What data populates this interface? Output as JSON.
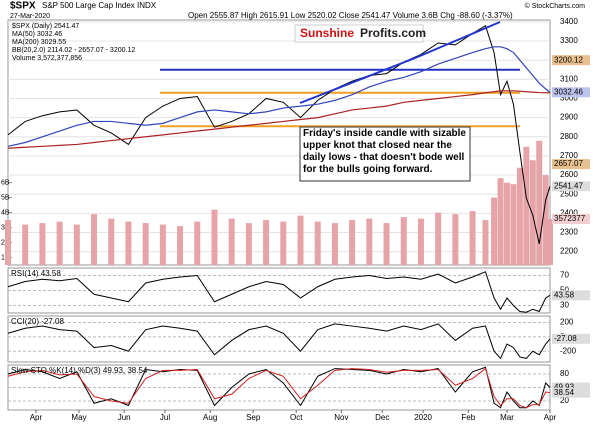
{
  "header": {
    "symbol": "$SPX",
    "name": "S&P 500 Large Cap Index INDX",
    "date": "27-Mar-2020",
    "quote": "Open 2555.87  High 2615.91  Low 2520.02  Close 2541.47  Volume 3.6B  Chg -88.60 (-3.37%)",
    "credit": "© StockCharts.com"
  },
  "logo": {
    "part1": "Sunshine",
    "part2": "Profits.com"
  },
  "annotation": "Friday's inside candle with sizable upper knot that closed near the daily lows - that doesn't bode well for the bulls going forward.",
  "chart_data": {
    "type": "line",
    "legend": [
      "$SPX (Daily) 2541.47",
      "MA(50) 3032.46",
      "MA(200) 3029.55",
      "BB(20,2.0) 2114.02 - 2657.07 - 3200.12",
      "Volume 3,572,377,856"
    ],
    "x": [
      0,
      8,
      16,
      24,
      32,
      40,
      48,
      56,
      64,
      72,
      80,
      88,
      96,
      104,
      112,
      120,
      128,
      136,
      144,
      152,
      160,
      168,
      176,
      184,
      192,
      200,
      208,
      216,
      222,
      226,
      229,
      232,
      235,
      238,
      241,
      244,
      247,
      250,
      252
    ],
    "xlim": [
      0,
      252
    ],
    "xticks": [
      {
        "value": 13,
        "label": "Apr"
      },
      {
        "value": 33,
        "label": "May"
      },
      {
        "value": 54,
        "label": "Jun"
      },
      {
        "value": 73,
        "label": "Jul"
      },
      {
        "value": 94,
        "label": "Aug"
      },
      {
        "value": 114,
        "label": "Sep"
      },
      {
        "value": 134,
        "label": "Oct"
      },
      {
        "value": 155,
        "label": "Nov"
      },
      {
        "value": 174,
        "label": "Dec"
      },
      {
        "value": 193,
        "label": "2020"
      },
      {
        "value": 214,
        "label": "Feb"
      },
      {
        "value": 232,
        "label": "Mar"
      },
      {
        "value": 252,
        "label": "Apr"
      }
    ],
    "ylim": [
      2130,
      3410
    ],
    "yticks": [
      2200,
      2300,
      2400,
      2500,
      2600,
      2700,
      2800,
      2900,
      3000,
      3100,
      3200,
      3300,
      3400
    ],
    "series": [
      {
        "name": "Close",
        "color": "#000000",
        "values": [
          2810,
          2880,
          2910,
          2930,
          2940,
          2860,
          2820,
          2760,
          2900,
          2960,
          3000,
          3010,
          2850,
          2880,
          2920,
          3000,
          2980,
          2900,
          2990,
          3050,
          3090,
          3120,
          3130,
          3190,
          3230,
          3290,
          3280,
          3340,
          3380,
          3240,
          3020,
          3090,
          2970,
          2720,
          2480,
          2390,
          2240,
          2470,
          2541.47
        ]
      },
      {
        "name": "MA(50)",
        "color": "#3344bb",
        "values": [
          2750,
          2770,
          2800,
          2830,
          2860,
          2880,
          2880,
          2870,
          2860,
          2870,
          2900,
          2930,
          2940,
          2930,
          2920,
          2930,
          2950,
          2960,
          2970,
          2990,
          3020,
          3060,
          3090,
          3110,
          3140,
          3180,
          3210,
          3240,
          3260,
          3270,
          3270,
          3260,
          3240,
          3200,
          3160,
          3120,
          3080,
          3050,
          3032.46
        ]
      },
      {
        "name": "MA(200)",
        "color": "#aa2222",
        "values": [
          2740,
          2745,
          2750,
          2755,
          2760,
          2770,
          2780,
          2790,
          2800,
          2810,
          2820,
          2830,
          2840,
          2850,
          2860,
          2870,
          2880,
          2890,
          2900,
          2920,
          2940,
          2950,
          2960,
          2980,
          2990,
          3000,
          3010,
          3020,
          3030,
          3035,
          3040,
          3040,
          3040,
          3038,
          3035,
          3033,
          3031,
          3030,
          3029.55
        ]
      }
    ],
    "levels": [
      {
        "value": 3030,
        "color": "#f0a020"
      },
      {
        "value": 2855,
        "color": "#f0a020"
      },
      {
        "value": 3150,
        "color": "#2233cc"
      }
    ],
    "bb": [
      {
        "value": 3200.12,
        "color": "#e8c090"
      },
      {
        "value": 2657.07,
        "color": "#e8c090"
      }
    ],
    "volume": {
      "color": "#e6a4a8",
      "ylim": [
        500000000,
        16870000000
      ],
      "yticks": [
        {
          "value": 1000000000,
          "label": "1B"
        },
        {
          "value": 2000000000,
          "label": "2B"
        },
        {
          "value": 3000000000,
          "label": "3B"
        },
        {
          "value": 4000000000,
          "label": "4B"
        },
        {
          "value": 5000000000,
          "label": "5B"
        },
        {
          "value": 6000000000,
          "label": "6B"
        }
      ],
      "values": [
        3500000000,
        3200000000,
        3300000000,
        3400000000,
        3200000000,
        3900000000,
        3600000000,
        3400000000,
        3300000000,
        3200000000,
        3100000000,
        3400000000,
        4200000000,
        3600000000,
        3300000000,
        3500000000,
        3400000000,
        3800000000,
        3400000000,
        3300000000,
        3500000000,
        3600000000,
        3300000000,
        3700000000,
        3600000000,
        4000000000,
        3900000000,
        4100000000,
        3500000000,
        5000000000,
        6300000000,
        6000000000,
        5900000000,
        7000000000,
        8400000000,
        7500000000,
        8800000000,
        6500000000,
        3572377856
      ],
      "tag": "3572377"
    },
    "panels": [
      {
        "label": "RSI(14) 43.58",
        "ylim": [
          20,
          80
        ],
        "yticks": [
          30,
          50,
          70
        ],
        "series": [
          {
            "name": "RSI",
            "color": "#000000",
            "values": [
              55,
              62,
              65,
              63,
              66,
              45,
              40,
              35,
              60,
              65,
              68,
              70,
              35,
              45,
              55,
              62,
              58,
              40,
              55,
              65,
              68,
              70,
              66,
              68,
              65,
              72,
              60,
              68,
              75,
              40,
              25,
              40,
              30,
              22,
              21,
              25,
              22,
              40,
              43.58
            ]
          }
        ]
      },
      {
        "label": "CCI(20) -27.08",
        "ylim": [
          -350,
          290
        ],
        "yticks": [
          -200,
          0,
          200
        ],
        "series": [
          {
            "name": "CCI",
            "color": "#000000",
            "values": [
              50,
              120,
              150,
              100,
              80,
              -150,
              -120,
              -200,
              100,
              150,
              120,
              80,
              -250,
              -50,
              100,
              150,
              50,
              -200,
              100,
              180,
              150,
              120,
              80,
              150,
              100,
              180,
              -50,
              120,
              150,
              -200,
              -300,
              -100,
              -150,
              -280,
              -300,
              -200,
              -250,
              -100,
              -27.08
            ]
          }
        ]
      },
      {
        "label": "Slow STO %K(14) %D(3) 49.93, 38.54",
        "ylim": [
          0,
          100
        ],
        "yticks": [
          20,
          50,
          80
        ],
        "series": [
          {
            "name": "%K",
            "color": "#000000",
            "values": [
              80,
              90,
              85,
              70,
              85,
              15,
              25,
              10,
              90,
              85,
              90,
              88,
              10,
              50,
              80,
              90,
              60,
              10,
              75,
              92,
              90,
              88,
              80,
              90,
              85,
              92,
              40,
              85,
              95,
              15,
              5,
              40,
              20,
              5,
              5,
              20,
              10,
              60,
              49.93
            ]
          },
          {
            "name": "%D",
            "color": "#cc2222",
            "values": [
              75,
              85,
              88,
              78,
              80,
              30,
              20,
              15,
              70,
              88,
              88,
              90,
              25,
              35,
              70,
              88,
              75,
              25,
              55,
              88,
              92,
              90,
              84,
              88,
              88,
              90,
              55,
              70,
              92,
              30,
              10,
              25,
              25,
              10,
              5,
              12,
              12,
              40,
              38.54
            ]
          }
        ]
      }
    ]
  }
}
